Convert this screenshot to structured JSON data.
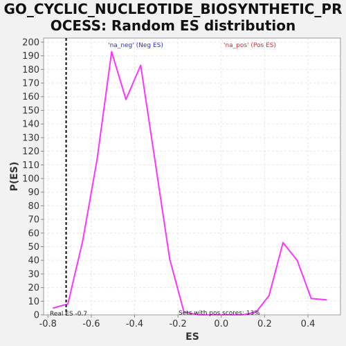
{
  "chart_data": {
    "type": "line",
    "title_lines": [
      "GO_CYCLIC_NUCLEOTIDE_BIOSYNTHETIC_PR",
      "OCESS: Random ES distribution"
    ],
    "xlabel": "ES",
    "ylabel": "P(ES)",
    "xlim": [
      -0.82,
      0.55
    ],
    "ylim": [
      0,
      203
    ],
    "x_ticks": [
      "-0.8",
      "-0.6",
      "-0.4",
      "-0.2",
      "0.0",
      "0.2",
      "0.4"
    ],
    "x_tick_values": [
      -0.8,
      -0.6,
      -0.4,
      -0.2,
      0.0,
      0.2,
      0.4
    ],
    "y_ticks": [
      "0",
      "10",
      "20",
      "30",
      "40",
      "50",
      "60",
      "70",
      "80",
      "90",
      "100",
      "110",
      "120",
      "130",
      "140",
      "150",
      "160",
      "170",
      "180",
      "190",
      "200"
    ],
    "y_tick_values": [
      0,
      10,
      20,
      30,
      40,
      50,
      60,
      70,
      80,
      90,
      100,
      110,
      120,
      130,
      140,
      150,
      160,
      170,
      180,
      190,
      200
    ],
    "grid": true,
    "series": [
      {
        "name": "",
        "color": "#ff33ff",
        "x": [
          -0.775,
          -0.708,
          -0.64,
          -0.573,
          -0.506,
          -0.44,
          -0.372,
          -0.305,
          -0.238,
          -0.172,
          -0.105,
          -0.038,
          0.03,
          0.097,
          0.16,
          0.22,
          0.285,
          0.35,
          0.415,
          0.485
        ],
        "y": [
          5,
          8,
          54,
          114,
          193,
          158,
          183,
          112,
          41,
          2,
          0,
          0,
          0,
          0,
          2,
          14,
          53,
          40,
          12,
          11
        ]
      }
    ],
    "vline": {
      "x": -0.716,
      "color": "#000000"
    },
    "legend": [
      {
        "label": "'na_neg' (Neg ES)",
        "color": "#2b2bd4"
      },
      {
        "label": "'na_pos' (Pos ES)",
        "color": "#e02828"
      }
    ],
    "annotations": {
      "real_es": "Real ES -0.7",
      "pos_scores": "Sets with pos scores: 13%"
    }
  }
}
